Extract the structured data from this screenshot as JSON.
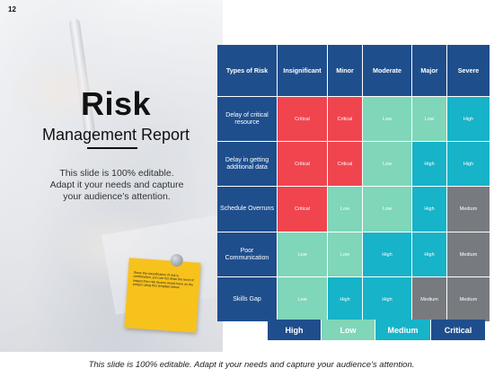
{
  "slide": {
    "page_number": "12",
    "title": "Risk",
    "subtitle": "Management Report",
    "intro_lines": [
      "This slide is 100% editable.",
      "Adapt it your needs and capture",
      "your audience’s attention."
    ],
    "note_text": "Show the classification of risk is combination, you can list down the level of impact then risk factors would have on the project using this template below",
    "footer": "This slide is 100% editable. Adapt it your needs and capture your audience’s attention."
  },
  "matrix": {
    "corner_label": "Types of Risk",
    "columns": [
      "Insignificant",
      "Minor",
      "Moderate",
      "Major",
      "Severe"
    ],
    "rows": [
      {
        "label": "Delay of critical resource",
        "cells": [
          "Critical",
          "Critical",
          "Low",
          "Low",
          "High"
        ]
      },
      {
        "label": "Delay in getting additional data",
        "cells": [
          "Critical",
          "Critical",
          "Low",
          "High",
          "High"
        ]
      },
      {
        "label": "Schedule Overruns",
        "cells": [
          "Critical",
          "Low",
          "Low",
          "High",
          "Medium"
        ]
      },
      {
        "label": "Poor Communication",
        "cells": [
          "Low",
          "Low",
          "High",
          "High",
          "Medium"
        ]
      },
      {
        "label": "Skills Gap",
        "cells": [
          "Low",
          "High",
          "High",
          "Medium",
          "Medium"
        ]
      }
    ]
  },
  "legend": [
    "High",
    "Low",
    "Medium",
    "Critical"
  ],
  "colors": {
    "header_blue": "#1f4e8c",
    "critical": "#f0454f",
    "low": "#7fd6b8",
    "high": "#16b3c9",
    "medium": "#777b80",
    "note_yellow": "#f8c21d"
  }
}
